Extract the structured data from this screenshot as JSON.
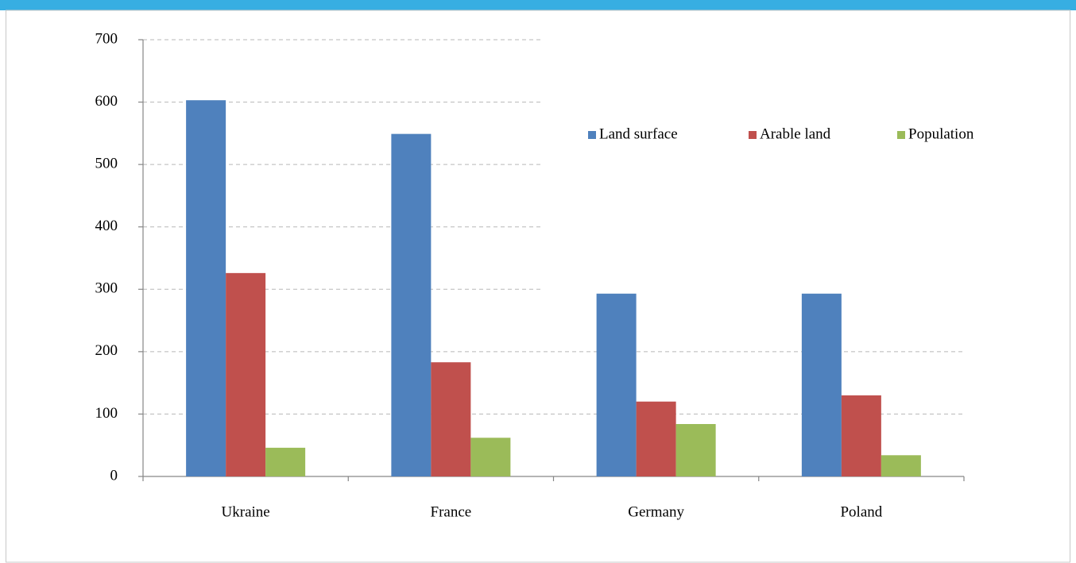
{
  "chart_data": {
    "type": "bar",
    "categories": [
      "Ukraine",
      "France",
      "Germany",
      "Poland"
    ],
    "series": [
      {
        "name": "Land surface",
        "color": "#4f81bd",
        "values": [
          603,
          549,
          293,
          293
        ]
      },
      {
        "name": "Arable land",
        "color": "#c0504d",
        "values": [
          326,
          183,
          120,
          130
        ]
      },
      {
        "name": "Population",
        "color": "#9bbb59",
        "values": [
          46,
          62,
          84,
          34
        ]
      }
    ],
    "ylim": [
      0,
      700
    ],
    "yticks": [
      0,
      100,
      200,
      300,
      400,
      500,
      600,
      700
    ],
    "grid": true,
    "legend": "upper-right"
  }
}
